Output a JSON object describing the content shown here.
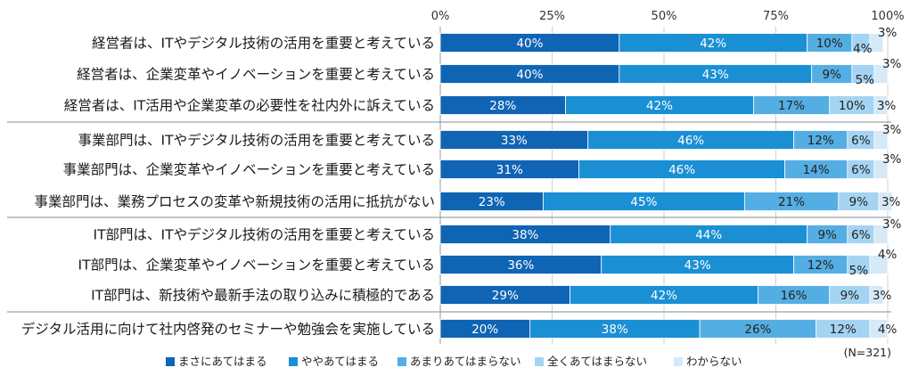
{
  "chart_data": {
    "type": "bar",
    "orientation": "horizontal",
    "stacked": true,
    "note": "(N=321)",
    "xlim": [
      0,
      100
    ],
    "ticks": [
      "0%",
      "25%",
      "50%",
      "75%",
      "100%"
    ],
    "legend_placement": "bottom",
    "categories": [
      "経営者は、ITやデジタル技術の活用を重要と考えている",
      "経営者は、企業変革やイノベーションを重要と考えている",
      "経営者は、IT活用や企業変革の必要性を社内外に訴えている",
      "事業部門は、ITやデジタル技術の活用を重要と考えている",
      "事業部門は、企業変革やイノベーションを重要と考えている",
      "事業部門は、業務プロセスの変革や新規技術の活用に抵抗がない",
      "IT部門は、ITやデジタル技術の活用を重要と考えている",
      "IT部門は、企業変革やイノベーションを重要と考えている",
      "IT部門は、新技術や最新手法の取り込みに積極的である",
      "デジタル活用に向けて社内啓発のセミナーや勉強会を実施している"
    ],
    "groups": [
      [
        0,
        1,
        2
      ],
      [
        3,
        4,
        5
      ],
      [
        6,
        7,
        8
      ],
      [
        9
      ]
    ],
    "series": [
      {
        "name": "まさにあてはまる",
        "color": "#1064b4",
        "values": [
          40,
          40,
          28,
          33,
          31,
          23,
          38,
          36,
          29,
          20
        ]
      },
      {
        "name": "ややあてはまる",
        "color": "#1a8fd4",
        "values": [
          42,
          43,
          42,
          46,
          46,
          45,
          44,
          43,
          42,
          38
        ]
      },
      {
        "name": "あまりあてはまらない",
        "color": "#55aee3",
        "values": [
          10,
          9,
          17,
          12,
          14,
          21,
          9,
          12,
          16,
          26
        ]
      },
      {
        "name": "全くあてはまらない",
        "color": "#a4d4f2",
        "values": [
          4,
          5,
          10,
          6,
          6,
          9,
          6,
          5,
          9,
          12
        ]
      },
      {
        "name": "わからない",
        "color": "#d6e9f7",
        "values": [
          3,
          3,
          3,
          3,
          3,
          3,
          3,
          4,
          3,
          4
        ]
      }
    ]
  }
}
